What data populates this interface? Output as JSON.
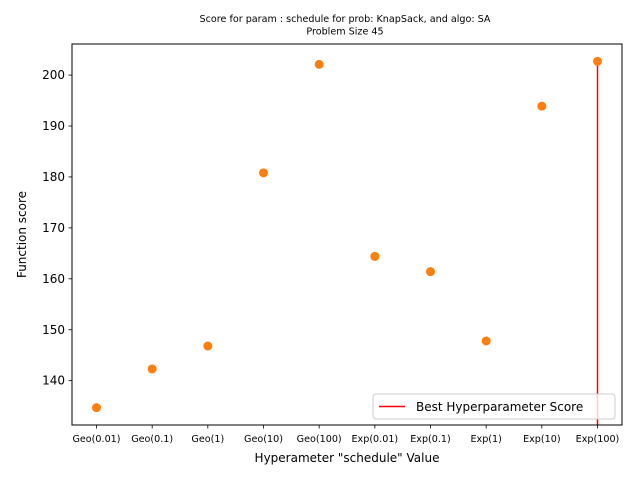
{
  "chart_data": {
    "type": "scatter",
    "title": "Score for param : schedule for prob: KnapSack, and algo: SA",
    "subtitle": "Problem Size 45",
    "xlabel": "Hyperameter \"schedule\" Value",
    "ylabel": "Function score",
    "categories": [
      "Geo(0.01)",
      "Geo(0.1)",
      "Geo(1)",
      "Geo(10)",
      "Geo(100)",
      "Exp(0.01)",
      "Exp(0.1)",
      "Exp(1)",
      "Exp(10)",
      "Exp(100)"
    ],
    "values": [
      134.7,
      142.3,
      146.8,
      180.8,
      202.1,
      164.4,
      161.4,
      147.8,
      193.9,
      202.7
    ],
    "ylim": [
      131.3,
      206.1
    ],
    "yticks": [
      140,
      150,
      160,
      170,
      180,
      190,
      200
    ],
    "grid": false,
    "point_color": "#ff7f0e",
    "best_line": {
      "label": "Best Hyperparameter Score",
      "category": "Exp(100)",
      "color": "#ff0000"
    },
    "legend_position": "lower-right"
  }
}
